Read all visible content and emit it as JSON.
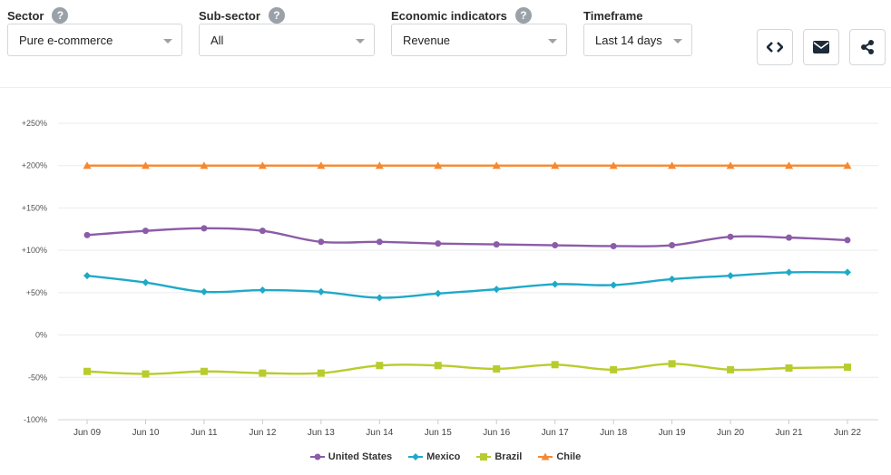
{
  "filters": {
    "sector": {
      "label": "Sector",
      "value": "Pure e-commerce"
    },
    "subsector": {
      "label": "Sub-sector",
      "value": "All"
    },
    "indicator": {
      "label": "Economic indicators",
      "value": "Revenue"
    },
    "timeframe": {
      "label": "Timeframe",
      "value": "Last 14 days"
    },
    "help_glyph": "?"
  },
  "actions": [
    "code-icon",
    "envelope-icon",
    "share-icon"
  ],
  "chart_data": {
    "type": "line",
    "categories": [
      "Jun 09",
      "Jun 10",
      "Jun 11",
      "Jun 12",
      "Jun 13",
      "Jun 14",
      "Jun 15",
      "Jun 16",
      "Jun 17",
      "Jun 18",
      "Jun 19",
      "Jun 20",
      "Jun 21",
      "Jun 22"
    ],
    "yticks": [
      "+250%",
      "+200%",
      "+150%",
      "+100%",
      "+50%",
      "0%",
      "-50%",
      "-100%"
    ],
    "ylim": [
      -100,
      250
    ],
    "grid": true,
    "legend_position": "bottom",
    "series": [
      {
        "name": "United States",
        "color": "#8b5ca8",
        "marker": "circle",
        "values": [
          118,
          123,
          126,
          123,
          110,
          110,
          108,
          107,
          106,
          105,
          106,
          116,
          115,
          112
        ]
      },
      {
        "name": "Mexico",
        "color": "#1fa9c8",
        "marker": "diamond",
        "values": [
          70,
          62,
          51,
          53,
          51,
          44,
          49,
          54,
          60,
          59,
          66,
          70,
          74,
          74
        ]
      },
      {
        "name": "Brazil",
        "color": "#b9cc2e",
        "marker": "square",
        "values": [
          -43,
          -46,
          -43,
          -45,
          -45,
          -36,
          -36,
          -40,
          -35,
          -41,
          -34,
          -41,
          -39,
          -38
        ]
      },
      {
        "name": "Chile",
        "color": "#f7882f",
        "marker": "triangle",
        "values": [
          200,
          200,
          200,
          200,
          200,
          200,
          200,
          200,
          200,
          200,
          200,
          200,
          200,
          200
        ]
      }
    ]
  }
}
